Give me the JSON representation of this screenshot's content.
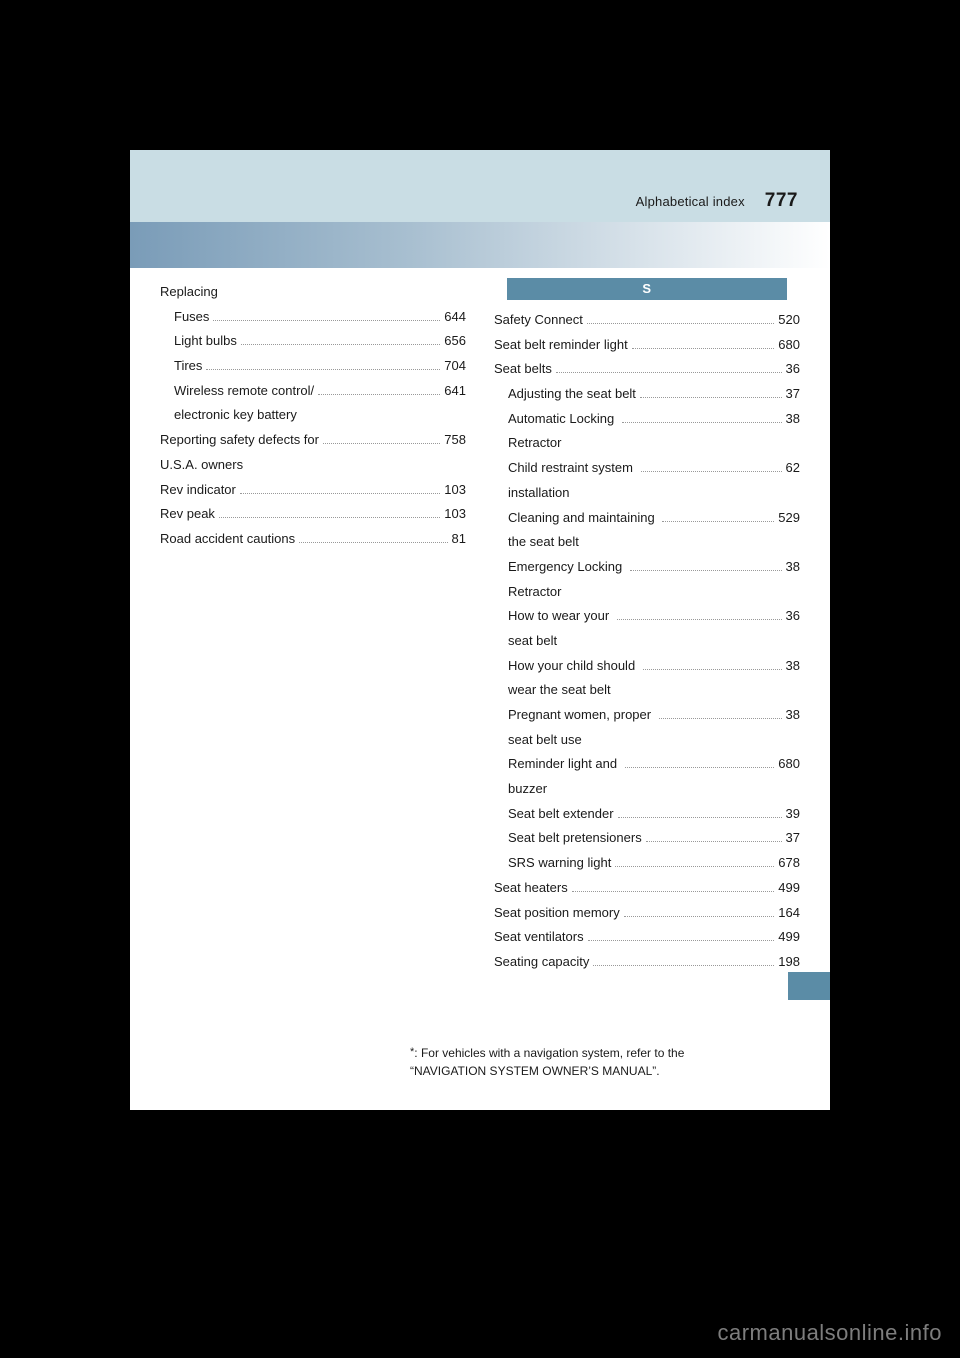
{
  "header": {
    "label": "Alphabetical index",
    "page_number": "777"
  },
  "section_letter": "S",
  "left_col": [
    {
      "label": "Replacing",
      "indent": 0,
      "type": "head"
    },
    {
      "label": "Fuses",
      "page": "644",
      "indent": 1
    },
    {
      "label": "Light bulbs",
      "page": "656",
      "indent": 1
    },
    {
      "label": "Tires",
      "page": "704",
      "indent": 1
    },
    {
      "label": "Wireless remote control/\nelectronic key battery",
      "page": "641",
      "indent": 1
    },
    {
      "label": "Reporting safety defects for\nU.S.A. owners",
      "page": "758",
      "indent": 0
    },
    {
      "label": "Rev indicator",
      "page": "103",
      "indent": 0
    },
    {
      "label": "Rev peak",
      "page": "103",
      "indent": 0
    },
    {
      "label": "Road accident cautions",
      "page": "81",
      "indent": 0
    }
  ],
  "right_col": [
    {
      "label": "Safety Connect",
      "page": "520",
      "indent": 0
    },
    {
      "label": "Seat belt reminder light",
      "page": "680",
      "indent": 0
    },
    {
      "label": "Seat belts",
      "page": "36",
      "indent": 0
    },
    {
      "label": "Adjusting the seat belt",
      "page": "37",
      "indent": 1
    },
    {
      "label": "Automatic Locking \nRetractor",
      "page": "38",
      "indent": 1
    },
    {
      "label": "Child restraint system \ninstallation",
      "page": "62",
      "indent": 1
    },
    {
      "label": "Cleaning and maintaining \nthe seat belt",
      "page": "529",
      "indent": 1
    },
    {
      "label": "Emergency Locking \nRetractor",
      "page": "38",
      "indent": 1
    },
    {
      "label": "How to wear your \nseat belt",
      "page": "36",
      "indent": 1
    },
    {
      "label": "How your child should \nwear the seat belt",
      "page": "38",
      "indent": 1
    },
    {
      "label": "Pregnant women, proper \nseat belt use",
      "page": "38",
      "indent": 1
    },
    {
      "label": "Reminder light and \nbuzzer",
      "page": "680",
      "indent": 1
    },
    {
      "label": "Seat belt extender",
      "page": "39",
      "indent": 1
    },
    {
      "label": "Seat belt pretensioners",
      "page": "37",
      "indent": 1
    },
    {
      "label": "SRS warning light",
      "page": "678",
      "indent": 1
    },
    {
      "label": "Seat heaters",
      "page": "499",
      "indent": 0
    },
    {
      "label": "Seat position memory",
      "page": "164",
      "indent": 0
    },
    {
      "label": "Seat ventilators",
      "page": "499",
      "indent": 0
    },
    {
      "label": "Seating capacity",
      "page": "198",
      "indent": 0
    }
  ],
  "footnote": {
    "line1": ": For vehicles with a navigation system, refer to the",
    "line2": "“NAVIGATION SYSTEM OWNER’S MANUAL”."
  },
  "watermark": "carmanualsonline.info"
}
